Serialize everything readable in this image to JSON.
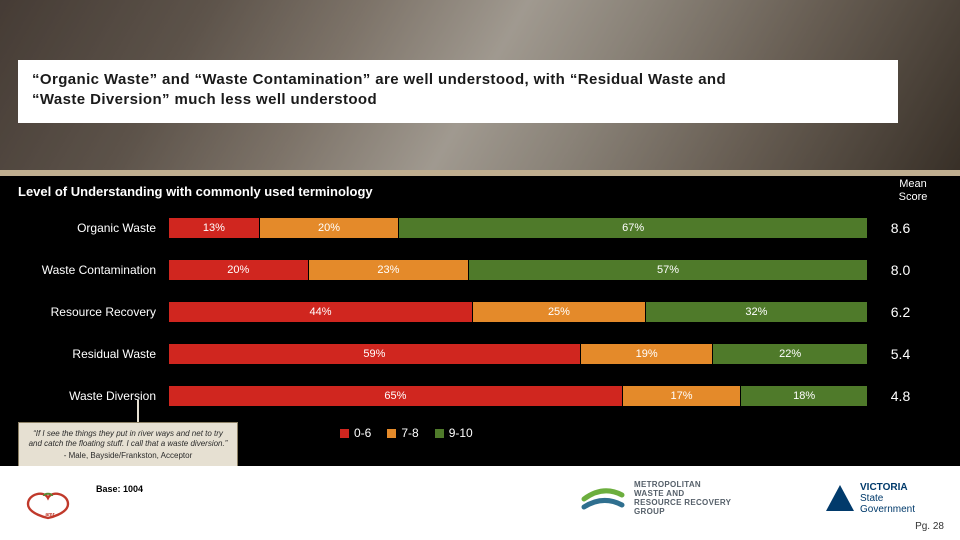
{
  "title_line1": "“Organic Waste” and “Waste Contamination” are well understood, with “Residual Waste and",
  "title_line2": "“Waste Diversion” much less well understood",
  "section_title": "Level of Understanding with commonly used terminology",
  "mean_header": "Mean Score",
  "chart": {
    "type": "stacked-horizontal-bar",
    "segment_keys": [
      "low",
      "mid",
      "high"
    ],
    "colors": {
      "low": "#d0261f",
      "mid": "#e48a2a",
      "high": "#4f7a2a"
    },
    "segment_labels": {
      "low": "0-6",
      "mid": "7-8",
      "high": "9-10"
    },
    "label_fontsize": 11,
    "cat_fontsize": 12,
    "mean_fontsize": 14,
    "rows": [
      {
        "category": "Organic Waste",
        "values": {
          "low": 13,
          "mid": 20,
          "high": 67
        },
        "mean": "8.6"
      },
      {
        "category": "Waste Contamination",
        "values": {
          "low": 20,
          "mid": 23,
          "high": 57
        },
        "mean": "8.0"
      },
      {
        "category": "Resource Recovery",
        "values": {
          "low": 44,
          "mid": 25,
          "high": 32
        },
        "mean": "6.2"
      },
      {
        "category": "Residual Waste",
        "values": {
          "low": 59,
          "mid": 19,
          "high": 22
        },
        "mean": "5.4"
      },
      {
        "category": "Waste Diversion",
        "values": {
          "low": 65,
          "mid": 17,
          "high": 18
        },
        "mean": "4.8"
      }
    ],
    "background_color": "#000000",
    "text_color": "#ffffff"
  },
  "quote": {
    "text": "“If I see the things they put in river ways and net to try and catch the floating stuff. I call that a waste diversion.”",
    "attribution": "- Male, Bayside/Frankston, Acceptor"
  },
  "base": "Base: 1004",
  "page_number": "Pg. 28",
  "logos": {
    "amr_color_accent": "#c0392b",
    "mwrrg_text_l1": "METROPOLITAN",
    "mwrrg_text_l2": "WASTE AND",
    "mwrrg_text_l3": "RESOURCE RECOVERY",
    "mwrrg_text_l4": "GROUP",
    "mwrrg_arc_green": "#6cae3e",
    "mwrrg_arc_blue": "#2f6f8f",
    "victoria_l1": "VICTORIA",
    "victoria_l2": "State",
    "victoria_l3": "Government",
    "victoria_blue": "#013a6b"
  }
}
